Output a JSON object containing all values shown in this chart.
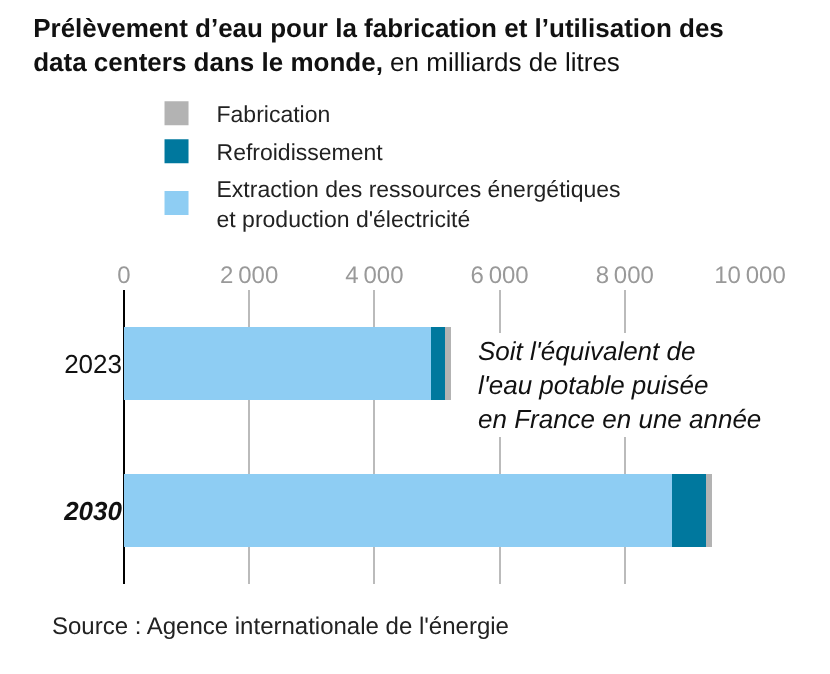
{
  "chart_data": {
    "type": "bar",
    "orientation": "horizontal",
    "stacked": true,
    "title": "Prélèvement d’eau pour la fabrication et l’utilisation des data centers dans le monde,",
    "subtitle": "en milliards de litres",
    "categories": [
      "2023",
      "2030"
    ],
    "series": [
      {
        "name": "Extraction des ressources énergétiques et production d'électricité",
        "color": "#8ecdf3",
        "values": [
          4900,
          8750
        ]
      },
      {
        "name": "Refroidissement",
        "color": "#00789e",
        "values": [
          230,
          550
        ]
      },
      {
        "name": "Fabrication",
        "color": "#b3b3b3",
        "values": [
          100,
          90
        ]
      }
    ],
    "xlim": [
      0,
      10000
    ],
    "xticks": [
      0,
      2000,
      4000,
      6000,
      8000,
      10000
    ],
    "grid": "x",
    "legend": "top left",
    "annotations": [
      "Soit l'équivalent de l'eau potable puisée en France en une année",
      "Source : Agence internationale de l'énergie"
    ]
  }
}
